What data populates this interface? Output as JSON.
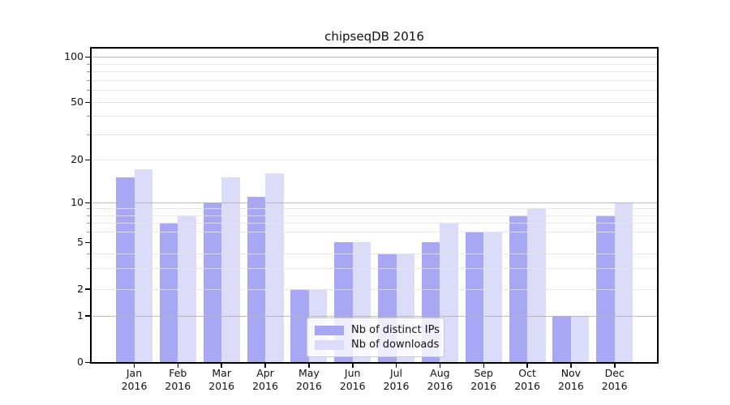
{
  "chart_data": {
    "type": "bar",
    "title": "chipseqDB 2016",
    "x_categories": [
      "Jan 2016",
      "Feb 2016",
      "Mar 2016",
      "Apr 2016",
      "May 2016",
      "Jun 2016",
      "Jul 2016",
      "Aug 2016",
      "Sep 2016",
      "Oct 2016",
      "Nov 2016",
      "Dec 2016"
    ],
    "months": [
      "Jan",
      "Feb",
      "Mar",
      "Apr",
      "May",
      "Jun",
      "Jul",
      "Aug",
      "Sep",
      "Oct",
      "Nov",
      "Dec"
    ],
    "year": "2016",
    "series": [
      {
        "name": "Nb of distinct IPs",
        "color": "#a7a7f3",
        "values": [
          15,
          7,
          10,
          11,
          2,
          5,
          4,
          5,
          6,
          8,
          1,
          8
        ]
      },
      {
        "name": "Nb of downloads",
        "color": "#dbdbfa",
        "values": [
          17,
          8,
          15,
          16,
          2,
          5,
          4,
          7,
          6,
          9,
          1,
          10
        ]
      }
    ],
    "yaxis": {
      "scale": "log-like",
      "ylim": [
        0,
        100
      ],
      "tick_labels": [
        0,
        1,
        2,
        5,
        10,
        20,
        50,
        100
      ],
      "major_gridlines": [
        1,
        10,
        100
      ],
      "minor_gridlines": [
        2,
        3,
        4,
        6,
        7,
        8,
        9,
        20,
        30,
        40,
        50,
        60,
        70,
        80,
        90
      ],
      "grid": "on"
    },
    "legend_position": "lower center"
  },
  "colors": {
    "bar_distinct_ips": "#a7a7f3",
    "bar_downloads": "#dbdbfa",
    "axis_spine": "#000000",
    "major_grid": "rgba(180,180,180,0.9)",
    "minor_grid": "rgba(228,228,228,0.9)",
    "legend_border": "#cccccc",
    "background": "#ffffff"
  }
}
